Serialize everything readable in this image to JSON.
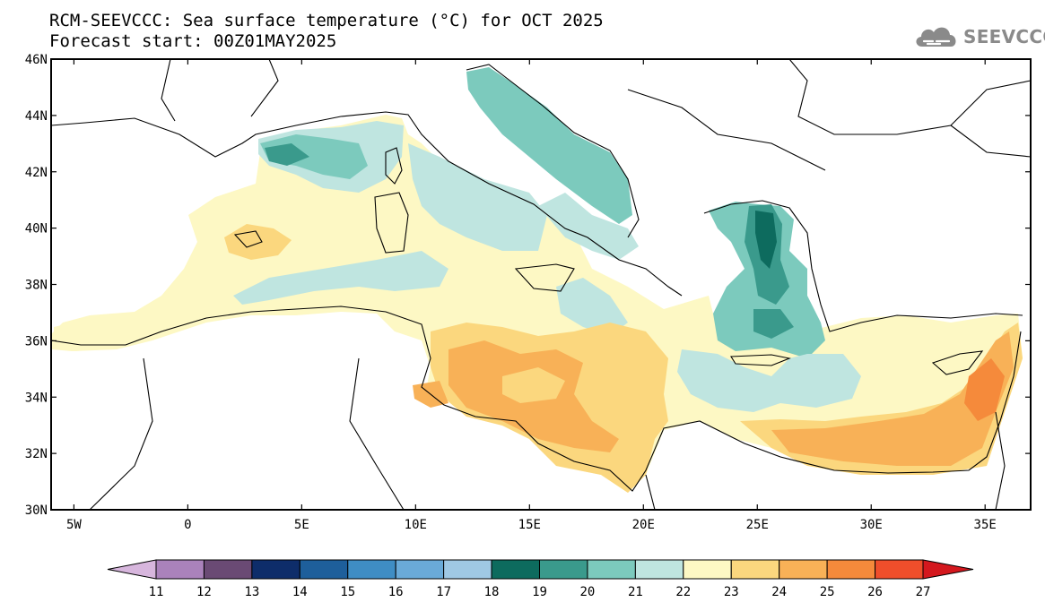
{
  "title": {
    "line1": "RCM-SEEVCCC: Sea surface temperature (°C) for OCT 2025",
    "line2": "Forecast start: 00Z01MAY2025"
  },
  "logo": {
    "text": "SEEVCCC",
    "icon": "cloud-icon",
    "color": "#8a8a8a"
  },
  "map": {
    "variable": "Sea surface temperature",
    "units": "°C",
    "lon_range": [
      -6,
      37
    ],
    "lat_range": [
      30,
      46
    ],
    "lat_ticks": [
      "46N",
      "44N",
      "42N",
      "40N",
      "38N",
      "36N",
      "34N",
      "32N",
      "30N"
    ],
    "lon_ticks": [
      "5W",
      "0",
      "5E",
      "10E",
      "15E",
      "20E",
      "25E",
      "30E",
      "35E"
    ],
    "land_color": "#ffffff",
    "coastline_color": "#000000"
  },
  "colorbar": {
    "labels": [
      "11",
      "12",
      "13",
      "14",
      "15",
      "16",
      "17",
      "18",
      "19",
      "20",
      "21",
      "22",
      "23",
      "24",
      "25",
      "26",
      "27"
    ],
    "colors": [
      "#d7b6dd",
      "#aa82bb",
      "#6a4a74",
      "#0e2d6a",
      "#1e5f9b",
      "#3f8dc4",
      "#6aaad8",
      "#9fc8e4",
      "#0d6b5e",
      "#3a9a8c",
      "#7ccabd",
      "#bfe5e0",
      "#fdf8c4",
      "#fbd77e",
      "#f8b157",
      "#f58a3b",
      "#ef4e2b",
      "#d4181e"
    ]
  }
}
